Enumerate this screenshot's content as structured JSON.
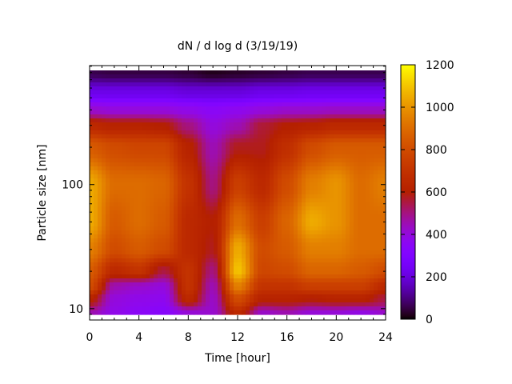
{
  "chart_data": {
    "type": "heatmap",
    "title": "dN / d log d (3/19/19)",
    "xlabel": "Time [hour]",
    "ylabel": "Particle size [nm]",
    "xlim": [
      0,
      24
    ],
    "ylim": [
      8.1,
      910
    ],
    "yscale": "log",
    "x_ticks": [
      "0",
      "4",
      "8",
      "12",
      "16",
      "20",
      "24"
    ],
    "y_ticks": [
      "10",
      "100"
    ],
    "colorbar": {
      "range": [
        0,
        1200
      ],
      "ticks": [
        "0",
        "200",
        "400",
        "600",
        "800",
        "1000",
        "1200"
      ],
      "palette": "black-blue-purple-red-orange-yellow"
    },
    "sizes_nm": [
      9,
      12,
      15,
      20,
      30,
      50,
      100,
      200,
      300,
      400,
      550,
      800
    ],
    "times_hour": [
      0,
      2,
      4,
      6,
      8,
      10,
      12,
      14,
      16,
      18,
      20,
      22,
      24
    ],
    "values": [
      [
        450,
        620,
        800,
        850,
        950,
        1050,
        1050,
        850,
        650,
        420,
        220,
        60
      ],
      [
        380,
        400,
        450,
        650,
        800,
        850,
        900,
        800,
        620,
        400,
        220,
        50
      ],
      [
        350,
        380,
        420,
        700,
        850,
        900,
        900,
        780,
        620,
        400,
        220,
        50
      ],
      [
        330,
        370,
        400,
        550,
        800,
        850,
        880,
        780,
        600,
        400,
        220,
        50
      ],
      [
        400,
        650,
        700,
        700,
        650,
        650,
        700,
        620,
        500,
        380,
        200,
        40
      ],
      [
        420,
        430,
        450,
        500,
        580,
        600,
        500,
        450,
        400,
        350,
        200,
        20
      ],
      [
        650,
        800,
        950,
        1100,
        1050,
        900,
        750,
        580,
        450,
        370,
        200,
        30
      ],
      [
        420,
        620,
        700,
        780,
        800,
        750,
        650,
        580,
        560,
        400,
        220,
        40
      ],
      [
        450,
        620,
        700,
        800,
        850,
        880,
        800,
        680,
        600,
        420,
        220,
        50
      ],
      [
        400,
        600,
        750,
        880,
        950,
        1050,
        950,
        800,
        620,
        420,
        230,
        60
      ],
      [
        400,
        620,
        750,
        880,
        950,
        1000,
        1000,
        850,
        650,
        430,
        230,
        60
      ],
      [
        380,
        620,
        750,
        850,
        900,
        900,
        900,
        850,
        650,
        430,
        230,
        60
      ],
      [
        420,
        550,
        650,
        800,
        900,
        900,
        950,
        850,
        650,
        430,
        230,
        60
      ]
    ]
  }
}
